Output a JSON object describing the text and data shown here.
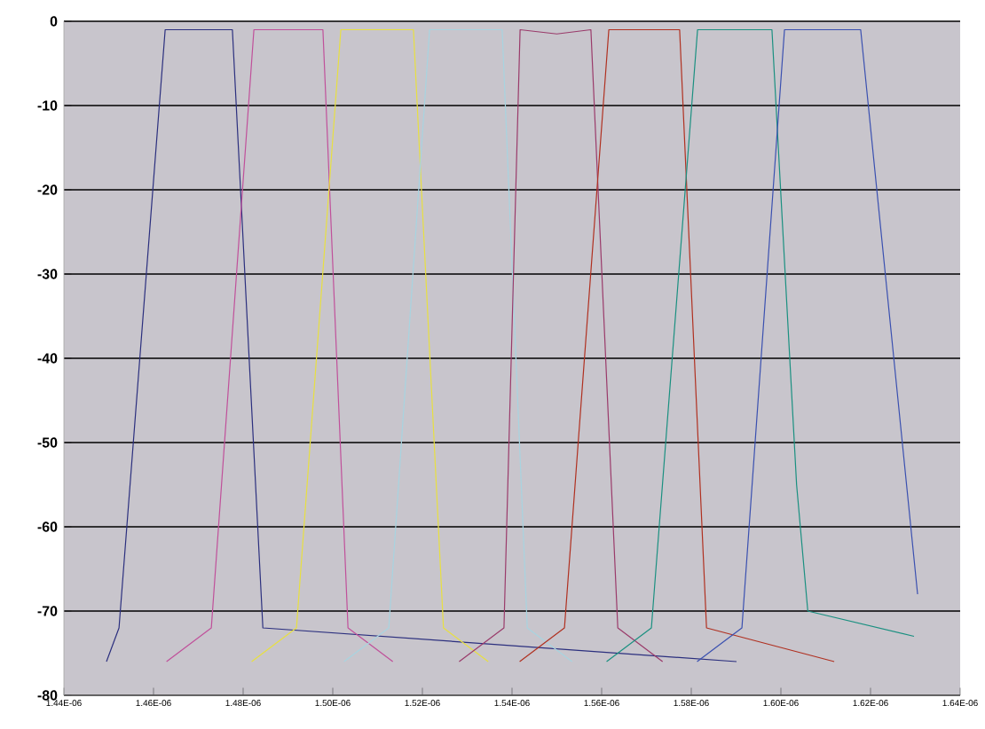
{
  "chart_data": {
    "type": "line",
    "grid": "y",
    "marker": "none",
    "line_style": "solid",
    "xlim": [
      1.44e-06,
      1.64e-06
    ],
    "xticks": [
      {
        "value": 1.44e-06,
        "label": "1.44E-06"
      },
      {
        "value": 1.46e-06,
        "label": "1.46E-06"
      },
      {
        "value": 1.48e-06,
        "label": "1.48E-06"
      },
      {
        "value": 1.5e-06,
        "label": "1.50E-06"
      },
      {
        "value": 1.52e-06,
        "label": "1.52E-06"
      },
      {
        "value": 1.54e-06,
        "label": "1.54E-06"
      },
      {
        "value": 1.56e-06,
        "label": "1.56E-06"
      },
      {
        "value": 1.58e-06,
        "label": "1.58E-06"
      },
      {
        "value": 1.6e-06,
        "label": "1.60E-06"
      },
      {
        "value": 1.62e-06,
        "label": "1.62E-06"
      },
      {
        "value": 1.64e-06,
        "label": "1.64E-06"
      }
    ],
    "ylim": [
      -80,
      0
    ],
    "yticks": [
      0,
      -10,
      -20,
      -30,
      -40,
      -50,
      -60,
      -70,
      -80
    ],
    "series": [
      {
        "color": "#2b2f7e",
        "x": [
          1.4495e-06,
          1.4523e-06,
          1.4626e-06,
          1.4776e-06,
          1.4844e-06,
          1.5901e-06
        ],
        "values": [
          -76,
          -72,
          -1,
          -1,
          -72,
          -76
        ]
      },
      {
        "color": "#c0509a",
        "x": [
          1.4629e-06,
          1.4729e-06,
          1.4824e-06,
          1.4978e-06,
          1.5034e-06,
          1.5134e-06
        ],
        "values": [
          -76,
          -72,
          -1,
          -1,
          -72,
          -76
        ]
      },
      {
        "color": "#e8e040",
        "x": [
          1.4819e-06,
          1.4919e-06,
          1.5018e-06,
          1.518e-06,
          1.5247e-06,
          1.5347e-06
        ],
        "values": [
          -76,
          -72,
          -1,
          -1,
          -72,
          -76
        ]
      },
      {
        "color": "#a8d4e0",
        "x": [
          1.5025e-06,
          1.5125e-06,
          1.5216e-06,
          1.5378e-06,
          1.5434e-06,
          1.5534e-06
        ],
        "values": [
          -76,
          -72,
          -1,
          -1,
          -72,
          -76
        ]
      },
      {
        "color": "#9a3a6a",
        "x": [
          1.5282e-06,
          1.5382e-06,
          1.5418e-06,
          1.55e-06,
          1.5576e-06,
          1.5636e-06,
          1.5736e-06
        ],
        "values": [
          -76,
          -72,
          -1,
          -1.5,
          -1,
          -72,
          -76
        ]
      },
      {
        "color": "#b03020",
        "x": [
          1.5417e-06,
          1.5517e-06,
          1.5616e-06,
          1.5774e-06,
          1.5834e-06,
          1.6119e-06
        ],
        "values": [
          -76,
          -72,
          -1,
          -1,
          -72,
          -76
        ]
      },
      {
        "color": "#1a9080",
        "x": [
          1.5611e-06,
          1.5711e-06,
          1.5814e-06,
          1.598e-06,
          1.6035e-06,
          1.606e-06,
          1.6297e-06
        ],
        "values": [
          -76,
          -72,
          -1,
          -1,
          -55,
          -70,
          -73
        ]
      },
      {
        "color": "#3a50b0",
        "x": [
          1.5813e-06,
          1.5913e-06,
          1.6008e-06,
          1.6178e-06,
          1.6305e-06
        ],
        "values": [
          -76,
          -72,
          -1,
          -1,
          -68
        ]
      }
    ]
  }
}
